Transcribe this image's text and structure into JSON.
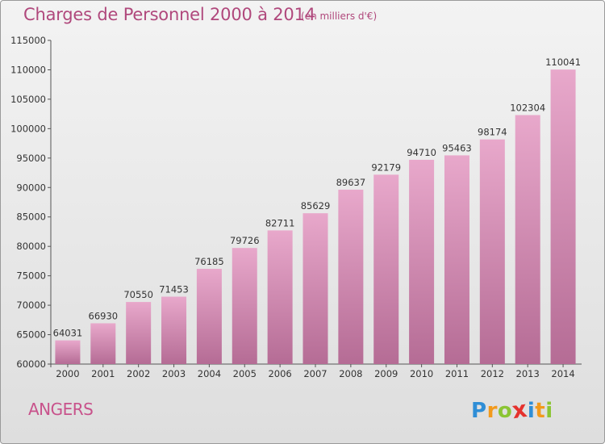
{
  "title": "Charges de Personnel 2000 à 2014",
  "subtitle": "(en milliers d'€)",
  "city": "ANGERS",
  "logo": {
    "letters": [
      "P",
      "r",
      "o",
      "x",
      "i",
      "t",
      "i"
    ],
    "colors": [
      "#2f8ed6",
      "#f29a1c",
      "#8bc534",
      "#e5322d",
      "#2f8ed6",
      "#f29a1c",
      "#8bc534"
    ]
  },
  "colors": {
    "bar_top": "#e8a8cb",
    "bar_bottom": "#b56c95",
    "text": "#b0487c"
  },
  "chart_data": {
    "type": "bar",
    "title": "Charges de Personnel 2000 à 2014",
    "subtitle": "(en milliers d'€)",
    "categories": [
      "2000",
      "2001",
      "2002",
      "2003",
      "2004",
      "2005",
      "2006",
      "2007",
      "2008",
      "2009",
      "2010",
      "2011",
      "2012",
      "2013",
      "2014"
    ],
    "values": [
      64031,
      66930,
      70550,
      71453,
      76185,
      79726,
      82711,
      85629,
      89637,
      92179,
      94710,
      95463,
      98174,
      102304,
      110041
    ],
    "ylim": [
      60000,
      115000
    ],
    "yticks": [
      60000,
      65000,
      70000,
      75000,
      80000,
      85000,
      90000,
      95000,
      100000,
      105000,
      110000,
      115000
    ],
    "grid": false,
    "data_labels": true
  }
}
